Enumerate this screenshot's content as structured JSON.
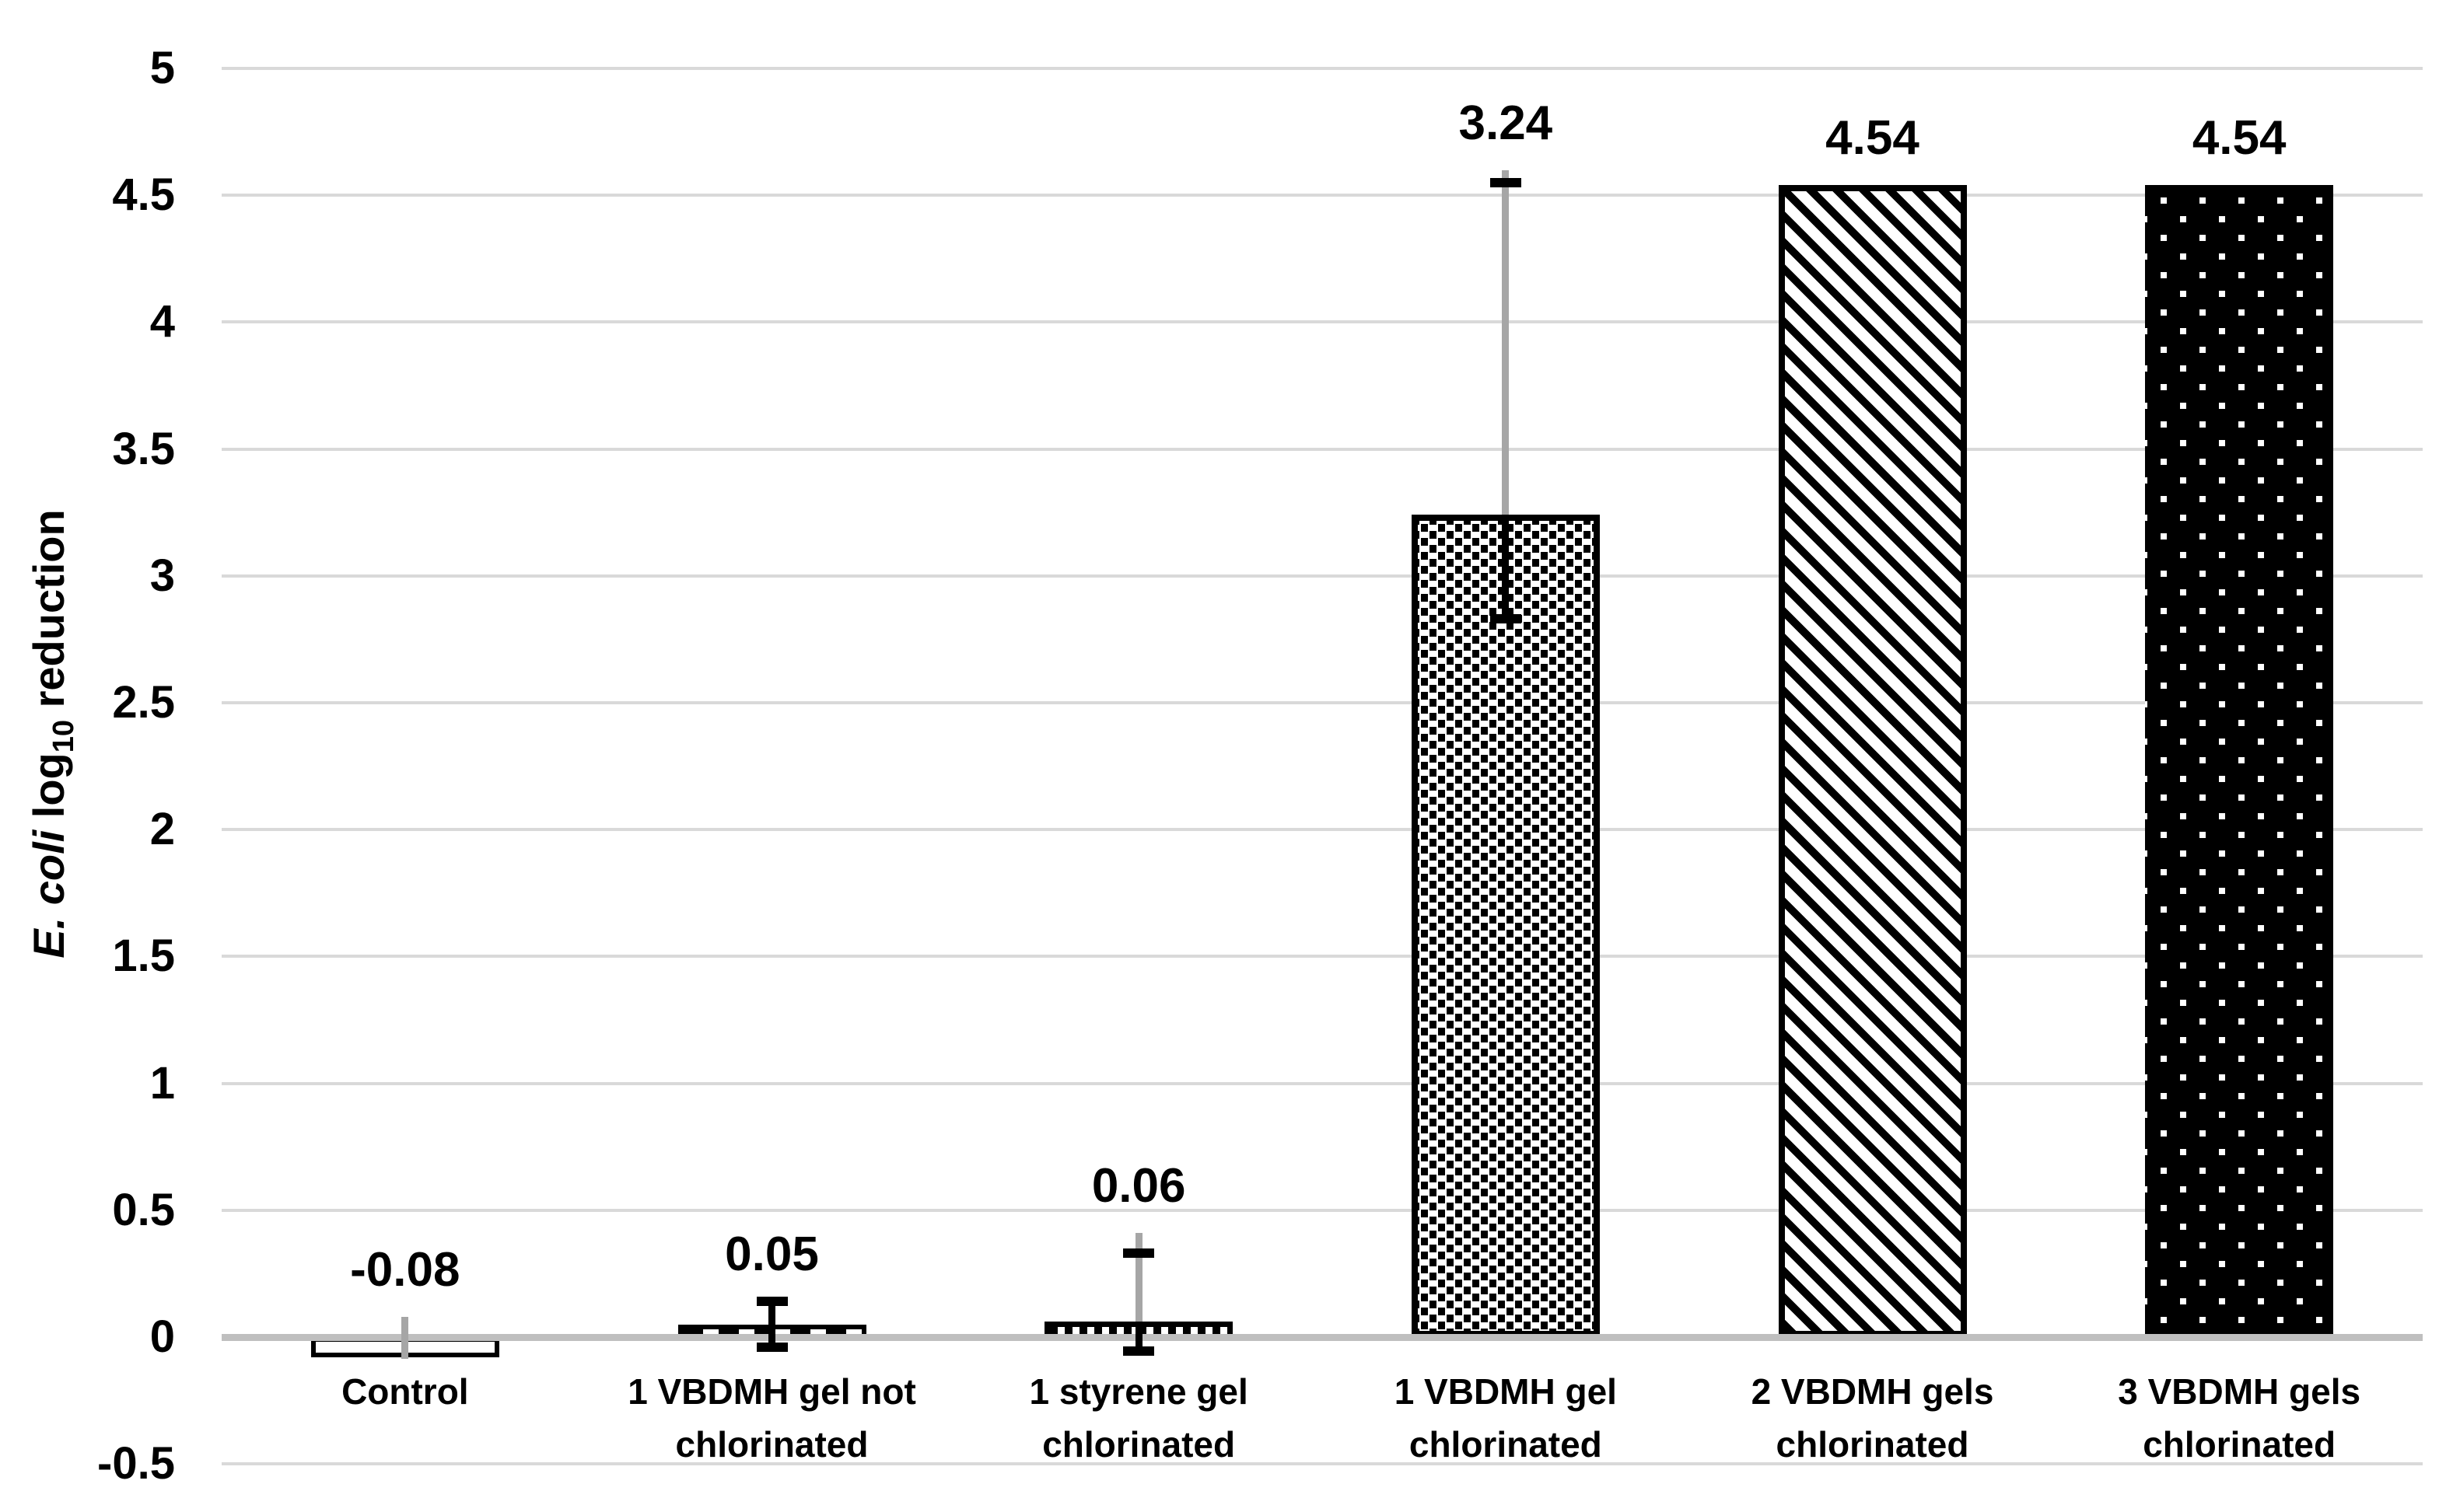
{
  "colors": {
    "background": "#ffffff",
    "gridline": "#d9d9d9",
    "zero_axis": "#bfbfbf",
    "error_gray": "#a6a6a6",
    "ink": "#000000"
  },
  "axis_title": {
    "italic": "E. coli",
    "pre_sub": " log",
    "sub": "10",
    "post_sub": " reduction"
  },
  "chart_data": {
    "type": "bar",
    "title": "",
    "xlabel": "",
    "ylabel": "E. coli log10 reduction",
    "ylim": [
      -0.5,
      5
    ],
    "tick_step": 0.5,
    "grid": true,
    "legend": false,
    "categories": [
      "Control",
      "1 VBDMH gel not chlorinated",
      "1 styrene gel chlorinated",
      "1 VBDMH gel chlorinated",
      "2 VBDMH gels chlorinated",
      "3 VBDMH gels chlorinated"
    ],
    "values": [
      -0.08,
      0.05,
      0.06,
      3.24,
      4.54,
      4.54
    ],
    "ticks": [
      {
        "v": 5,
        "label": "5"
      },
      {
        "v": 4.5,
        "label": "4.5"
      },
      {
        "v": 4,
        "label": "4"
      },
      {
        "v": 3.5,
        "label": "3.5"
      },
      {
        "v": 3,
        "label": "3"
      },
      {
        "v": 2.5,
        "label": "2.5"
      },
      {
        "v": 2,
        "label": "2"
      },
      {
        "v": 1.5,
        "label": "1.5"
      },
      {
        "v": 1,
        "label": "1"
      },
      {
        "v": 0.5,
        "label": "0.5"
      },
      {
        "v": 0,
        "label": "0"
      },
      {
        "v": -0.5,
        "label": "-0.5"
      }
    ],
    "bars": [
      {
        "category": "Control",
        "label_lines": [
          "Control"
        ],
        "value": -0.08,
        "value_label": "-0.08",
        "pattern": "outline-white",
        "error": {
          "stem": [
            -0.085,
            0.08
          ],
          "stem_color": "#a6a6a6",
          "caps": [],
          "cap_color": "#000000"
        }
      },
      {
        "category": "1 VBDMH gel not chlorinated",
        "label_lines": [
          "1 VBDMH gel not",
          "chlorinated"
        ],
        "value": 0.05,
        "value_label": "0.05",
        "pattern": "dash-horizontal",
        "error": {
          "stem": [
            -0.04,
            0.14
          ],
          "stem_color": "#000000",
          "caps": [
            -0.04,
            0.14
          ],
          "cap_color": "#000000"
        }
      },
      {
        "category": "1 styrene gel chlorinated",
        "label_lines": [
          "1 styrene gel",
          "chlorinated"
        ],
        "value": 0.06,
        "value_label": "0.06",
        "pattern": "dash-vertical",
        "error": {
          "stem": [
            -0.055,
            0.41
          ],
          "stem_color": "#a6a6a6",
          "stem_color_inside": "#000000",
          "caps": [
            -0.055,
            0.33
          ],
          "cap_color": "#000000"
        }
      },
      {
        "category": "1 VBDMH gel chlorinated",
        "label_lines": [
          "1 VBDMH gel",
          "chlorinated"
        ],
        "value": 3.24,
        "value_label": "3.24",
        "pattern": "stipple-black-on-white",
        "error": {
          "stem": [
            2.83,
            4.6
          ],
          "stem_color": "#a6a6a6",
          "stem_color_inside": "#000000",
          "caps": [
            2.83,
            4.55
          ],
          "cap_color": "#000000"
        }
      },
      {
        "category": "2 VBDMH gels chlorinated",
        "label_lines": [
          "2 VBDMH gels",
          "chlorinated"
        ],
        "value": 4.54,
        "value_label": "4.54",
        "pattern": "diagonal-stripes-down",
        "error": null
      },
      {
        "category": "3 VBDMH gels chlorinated",
        "label_lines": [
          "3 VBDMH gels",
          "chlorinated"
        ],
        "value": 4.54,
        "value_label": "4.54",
        "pattern": "white-dots-on-black",
        "error": null
      }
    ]
  }
}
